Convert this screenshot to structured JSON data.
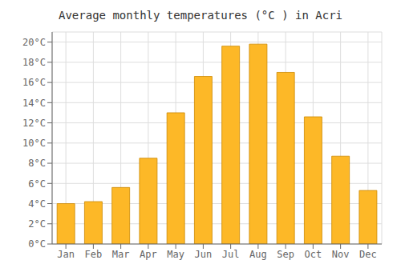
{
  "chart_data": {
    "type": "bar",
    "title": "Average monthly temperatures (°C ) in Acri",
    "categories": [
      "Jan",
      "Feb",
      "Mar",
      "Apr",
      "May",
      "Jun",
      "Jul",
      "Aug",
      "Sep",
      "Oct",
      "Nov",
      "Dec"
    ],
    "values": [
      4.0,
      4.2,
      5.6,
      8.5,
      13.0,
      16.6,
      19.6,
      19.8,
      17.0,
      12.6,
      8.7,
      5.3
    ],
    "color": "#FDB827",
    "ylim": [
      0,
      21
    ],
    "yticks": [
      {
        "value": 0,
        "label": "0°C"
      },
      {
        "value": 2,
        "label": "2°C"
      },
      {
        "value": 4,
        "label": "4°C"
      },
      {
        "value": 6,
        "label": "6°C"
      },
      {
        "value": 8,
        "label": "8°C"
      },
      {
        "value": 10,
        "label": "10°C"
      },
      {
        "value": 12,
        "label": "12°C"
      },
      {
        "value": 14,
        "label": "14°C"
      },
      {
        "value": 16,
        "label": "16°C"
      },
      {
        "value": 18,
        "label": "18°C"
      },
      {
        "value": 20,
        "label": "20°C"
      }
    ],
    "grid": true
  }
}
